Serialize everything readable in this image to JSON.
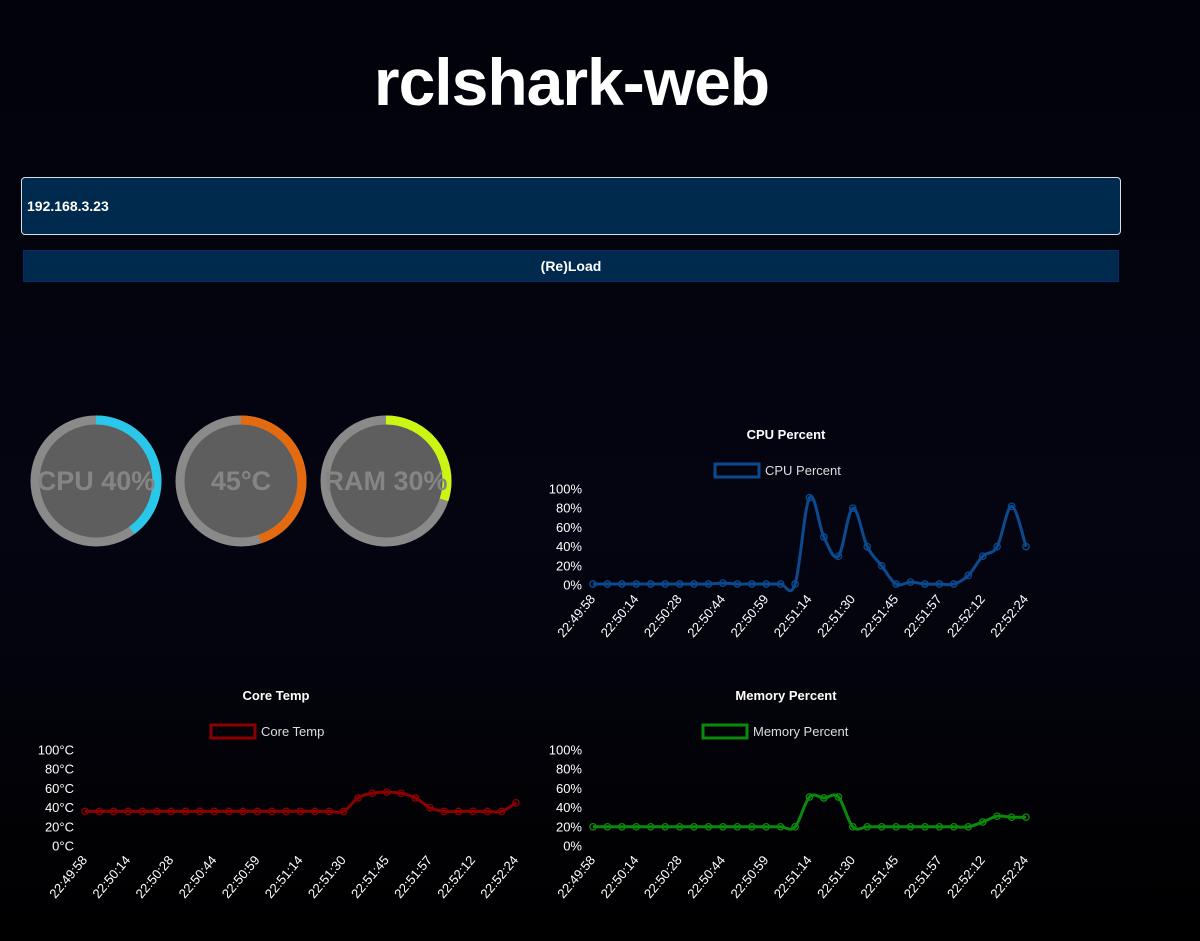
{
  "app": {
    "title": "rclshark-web"
  },
  "connection": {
    "ip_value": "192.168.3.23",
    "reload_label": "(Re)Load"
  },
  "gauges": [
    {
      "name": "cpu",
      "label": "CPU 40%",
      "value": 0.4,
      "color": "#29c8ea"
    },
    {
      "name": "temp",
      "label": "45°C",
      "value": 0.45,
      "color": "#e46a10"
    },
    {
      "name": "ram",
      "label": "RAM 30%",
      "value": 0.3,
      "color": "#cbf513"
    }
  ],
  "chart_data": [
    {
      "id": "cpu",
      "type": "line",
      "title": "CPU Percent",
      "legend": "top",
      "color": "#0c4a8f",
      "series": [
        {
          "name": "CPU Percent",
          "values": [
            1,
            1,
            1,
            1,
            1,
            1,
            1,
            1,
            1,
            2,
            1,
            1,
            1,
            1,
            1,
            91,
            50,
            30,
            80,
            40,
            20,
            1,
            3,
            1,
            1,
            1,
            10,
            30,
            40,
            82,
            40
          ]
        }
      ],
      "x_ticks": [
        "22:49:58",
        "22:50:14",
        "22:50:28",
        "22:50:44",
        "22:50:59",
        "22:51:14",
        "22:51:30",
        "22:51:45",
        "22:51:57",
        "22:52:12",
        "22:52:24"
      ],
      "y_ticks": [
        "0%",
        "20%",
        "40%",
        "60%",
        "80%",
        "100%"
      ],
      "ylim": [
        0,
        100
      ]
    },
    {
      "id": "temp",
      "type": "line",
      "title": "Core Temp",
      "legend": "top",
      "color": "#8b0000",
      "series": [
        {
          "name": "Core Temp",
          "values": [
            36,
            36,
            36,
            36,
            36,
            36,
            36,
            36,
            36,
            36,
            36,
            36,
            36,
            36,
            36,
            36,
            36,
            36,
            36,
            50,
            55,
            56,
            55,
            50,
            40,
            36,
            36,
            36,
            36,
            36,
            45
          ]
        }
      ],
      "x_ticks": [
        "22:49:58",
        "22:50:14",
        "22:50:28",
        "22:50:44",
        "22:50:59",
        "22:51:14",
        "22:51:30",
        "22:51:45",
        "22:51:57",
        "22:52:12",
        "22:52:24"
      ],
      "y_ticks": [
        "0°C",
        "20°C",
        "40°C",
        "60°C",
        "80°C",
        "100°C"
      ],
      "ylim": [
        0,
        100
      ]
    },
    {
      "id": "mem",
      "type": "line",
      "title": "Memory Percent",
      "legend": "top",
      "color": "#0a8a0a",
      "series": [
        {
          "name": "Memory Percent",
          "values": [
            20,
            20,
            20,
            20,
            20,
            20,
            20,
            20,
            20,
            20,
            20,
            20,
            20,
            20,
            20,
            51,
            50,
            51,
            20,
            20,
            20,
            20,
            20,
            20,
            20,
            20,
            20,
            25,
            31,
            30,
            30
          ]
        }
      ],
      "x_ticks": [
        "22:49:58",
        "22:50:14",
        "22:50:28",
        "22:50:44",
        "22:50:59",
        "22:51:14",
        "22:51:30",
        "22:51:45",
        "22:51:57",
        "22:52:12",
        "22:52:24"
      ],
      "y_ticks": [
        "0%",
        "20%",
        "40%",
        "60%",
        "80%",
        "100%"
      ],
      "ylim": [
        0,
        100
      ]
    }
  ]
}
